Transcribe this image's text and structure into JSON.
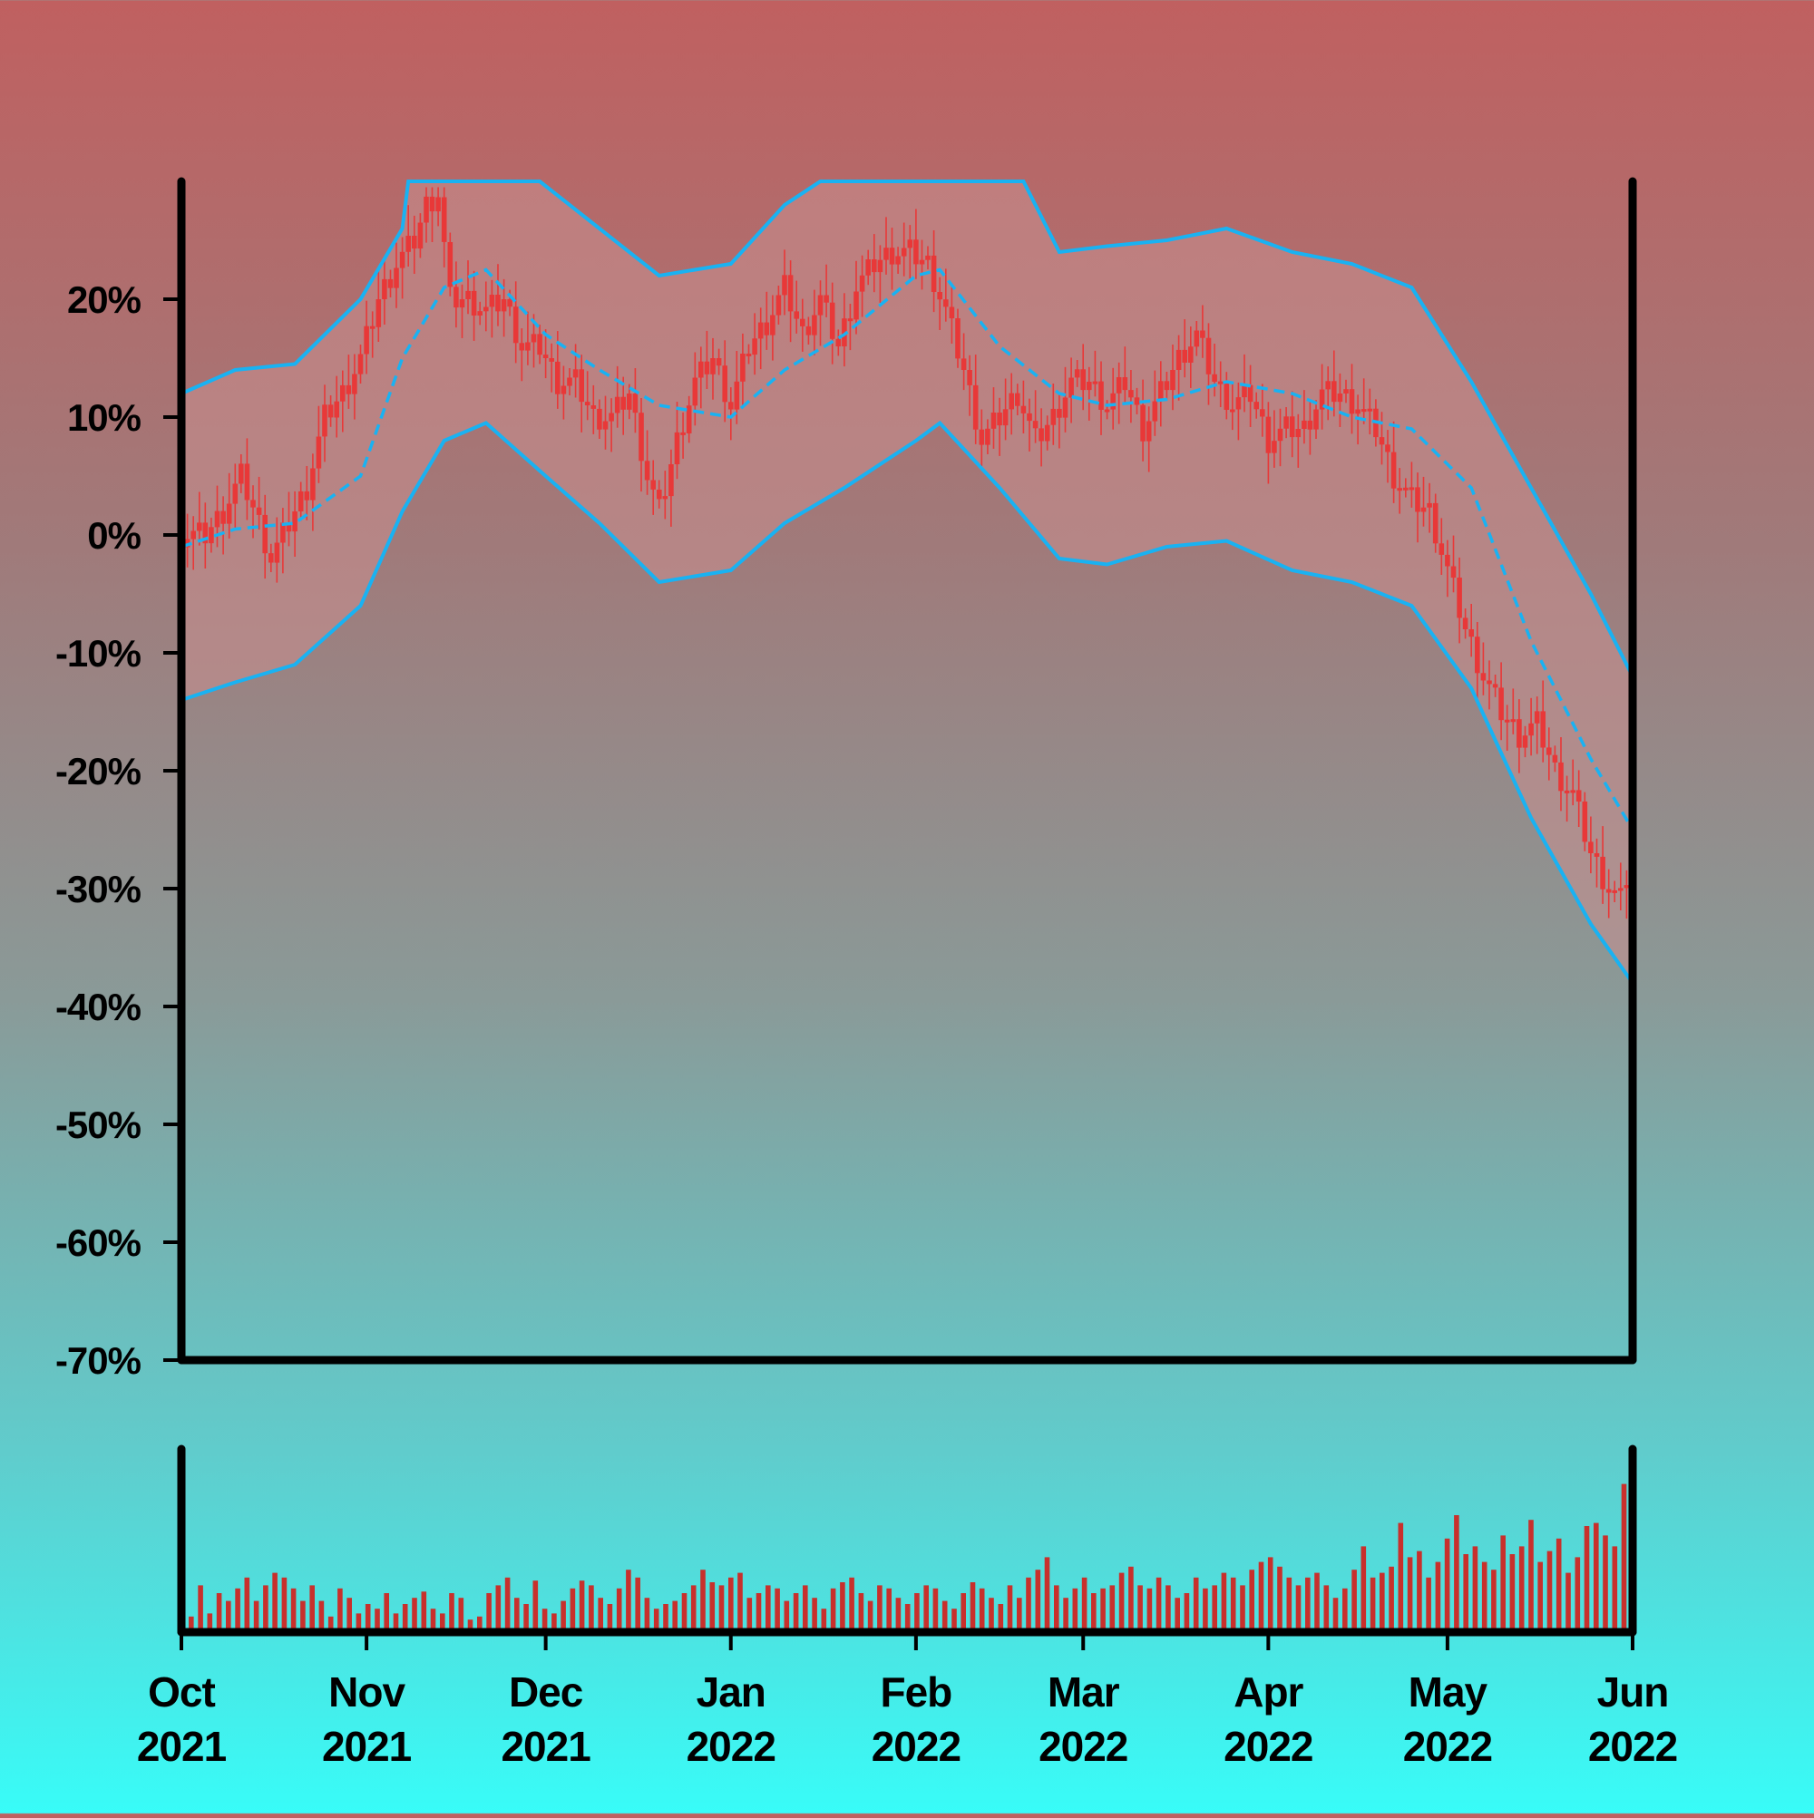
{
  "chart_data": [
    {
      "type": "candlestick",
      "panel": "price",
      "y_unit": "percent",
      "ylim": [
        -70,
        30
      ],
      "yticks": [
        "20%",
        "10%",
        "0%",
        "-10%",
        "-20%",
        "-30%",
        "-40%",
        "-50%",
        "-60%",
        "-70%"
      ],
      "ytick_values": [
        20,
        10,
        0,
        -10,
        -20,
        -30,
        -40,
        -50,
        -60,
        -70
      ],
      "xlim": [
        "2021-10-01",
        "2022-06-01"
      ],
      "grid": false,
      "legend": "none",
      "colors": {
        "candles": "#e83838",
        "bands": "#19b2f2",
        "band_fill": "#c89090"
      },
      "series": [
        {
          "role": "close",
          "style": "red candlesticks",
          "points": [
            [
              "2021-10-01",
              0
            ],
            [
              "2021-10-05",
              0
            ],
            [
              "2021-10-08",
              2
            ],
            [
              "2021-10-11",
              5
            ],
            [
              "2021-10-14",
              1
            ],
            [
              "2021-10-16",
              -2
            ],
            [
              "2021-10-19",
              1
            ],
            [
              "2021-10-22",
              4
            ],
            [
              "2021-10-25",
              10
            ],
            [
              "2021-10-28",
              12
            ],
            [
              "2021-10-31",
              15
            ],
            [
              "2021-11-03",
              20
            ],
            [
              "2021-11-06",
              23
            ],
            [
              "2021-11-09",
              25
            ],
            [
              "2021-11-11",
              28
            ],
            [
              "2021-11-13",
              29
            ],
            [
              "2021-11-15",
              20
            ],
            [
              "2021-11-18",
              20
            ],
            [
              "2021-11-21",
              19
            ],
            [
              "2021-11-24",
              20
            ],
            [
              "2021-11-27",
              16
            ],
            [
              "2021-11-30",
              16
            ],
            [
              "2021-12-03",
              13
            ],
            [
              "2021-12-06",
              13
            ],
            [
              "2021-12-09",
              10
            ],
            [
              "2021-12-12",
              10
            ],
            [
              "2021-12-15",
              12
            ],
            [
              "2021-12-18",
              5
            ],
            [
              "2021-12-20",
              2
            ],
            [
              "2021-12-23",
              8
            ],
            [
              "2021-12-26",
              13
            ],
            [
              "2021-12-29",
              15
            ],
            [
              "2022-01-01",
              11
            ],
            [
              "2022-01-04",
              16
            ],
            [
              "2022-01-07",
              18
            ],
            [
              "2022-01-10",
              21
            ],
            [
              "2022-01-13",
              17
            ],
            [
              "2022-01-16",
              20
            ],
            [
              "2022-01-19",
              16
            ],
            [
              "2022-01-22",
              21
            ],
            [
              "2022-01-25",
              23
            ],
            [
              "2022-01-28",
              24
            ],
            [
              "2022-01-31",
              24
            ],
            [
              "2022-02-03",
              23
            ],
            [
              "2022-02-06",
              19
            ],
            [
              "2022-02-09",
              14
            ],
            [
              "2022-02-12",
              8
            ],
            [
              "2022-02-15",
              10
            ],
            [
              "2022-02-18",
              12
            ],
            [
              "2022-02-21",
              8
            ],
            [
              "2022-02-24",
              10
            ],
            [
              "2022-02-27",
              13
            ],
            [
              "2022-03-02",
              13
            ],
            [
              "2022-03-05",
              11
            ],
            [
              "2022-03-08",
              13
            ],
            [
              "2022-03-11",
              9
            ],
            [
              "2022-03-14",
              12
            ],
            [
              "2022-03-17",
              15
            ],
            [
              "2022-03-20",
              17
            ],
            [
              "2022-03-23",
              13
            ],
            [
              "2022-03-26",
              11
            ],
            [
              "2022-03-29",
              12
            ],
            [
              "2022-04-01",
              8
            ],
            [
              "2022-04-04",
              9
            ],
            [
              "2022-04-07",
              9
            ],
            [
              "2022-04-10",
              12
            ],
            [
              "2022-04-13",
              12
            ],
            [
              "2022-04-16",
              11
            ],
            [
              "2022-04-19",
              9
            ],
            [
              "2022-04-22",
              5
            ],
            [
              "2022-04-25",
              3
            ],
            [
              "2022-04-28",
              2
            ],
            [
              "2022-05-01",
              -3
            ],
            [
              "2022-05-04",
              -8
            ],
            [
              "2022-05-07",
              -12
            ],
            [
              "2022-05-10",
              -15
            ],
            [
              "2022-05-13",
              -17
            ],
            [
              "2022-05-16",
              -16
            ],
            [
              "2022-05-19",
              -20
            ],
            [
              "2022-05-22",
              -22
            ],
            [
              "2022-05-25",
              -27
            ],
            [
              "2022-05-28",
              -30
            ],
            [
              "2022-05-30",
              -31
            ],
            [
              "2022-06-01",
              -27
            ]
          ]
        },
        {
          "role": "moving_average",
          "style": "dashed",
          "points": [
            [
              "2021-10-01",
              -1
            ],
            [
              "2021-10-10",
              0.5
            ],
            [
              "2021-10-20",
              1
            ],
            [
              "2021-10-31",
              5
            ],
            [
              "2021-11-07",
              15
            ],
            [
              "2021-11-14",
              21
            ],
            [
              "2021-11-21",
              22.5
            ],
            [
              "2021-12-01",
              17
            ],
            [
              "2021-12-10",
              14
            ],
            [
              "2021-12-20",
              11
            ],
            [
              "2022-01-01",
              10
            ],
            [
              "2022-01-10",
              14
            ],
            [
              "2022-01-20",
              17
            ],
            [
              "2022-02-01",
              22
            ],
            [
              "2022-02-05",
              22.5
            ],
            [
              "2022-02-15",
              16
            ],
            [
              "2022-02-25",
              12
            ],
            [
              "2022-03-05",
              11
            ],
            [
              "2022-03-15",
              11.5
            ],
            [
              "2022-03-25",
              13
            ],
            [
              "2022-04-05",
              12
            ],
            [
              "2022-04-15",
              10
            ],
            [
              "2022-04-25",
              9
            ],
            [
              "2022-05-05",
              4
            ],
            [
              "2022-05-15",
              -9
            ],
            [
              "2022-05-25",
              -19
            ],
            [
              "2022-06-01",
              -25
            ]
          ]
        },
        {
          "role": "upper_band",
          "style": "solid",
          "points": [
            [
              "2021-10-01",
              12
            ],
            [
              "2021-10-10",
              14
            ],
            [
              "2021-10-20",
              14.5
            ],
            [
              "2021-10-31",
              20
            ],
            [
              "2021-11-07",
              26
            ],
            [
              "2021-11-08",
              30
            ],
            [
              "2021-11-30",
              30
            ],
            [
              "2021-12-10",
              26
            ],
            [
              "2021-12-20",
              22
            ],
            [
              "2022-01-01",
              23
            ],
            [
              "2022-01-10",
              28
            ],
            [
              "2022-01-16",
              30
            ],
            [
              "2022-02-19",
              30
            ],
            [
              "2022-02-25",
              24
            ],
            [
              "2022-03-05",
              24.5
            ],
            [
              "2022-03-15",
              25
            ],
            [
              "2022-03-25",
              26
            ],
            [
              "2022-04-05",
              24
            ],
            [
              "2022-04-15",
              23
            ],
            [
              "2022-04-25",
              21
            ],
            [
              "2022-05-05",
              13
            ],
            [
              "2022-05-15",
              4
            ],
            [
              "2022-05-25",
              -5
            ],
            [
              "2022-06-01",
              -12
            ]
          ]
        },
        {
          "role": "lower_band",
          "style": "solid",
          "points": [
            [
              "2021-10-01",
              -14
            ],
            [
              "2021-10-10",
              -12.5
            ],
            [
              "2021-10-20",
              -11
            ],
            [
              "2021-10-31",
              -6
            ],
            [
              "2021-11-07",
              2
            ],
            [
              "2021-11-14",
              8
            ],
            [
              "2021-11-21",
              9.5
            ],
            [
              "2021-12-01",
              5
            ],
            [
              "2021-12-10",
              1
            ],
            [
              "2021-12-20",
              -4
            ],
            [
              "2022-01-01",
              -3
            ],
            [
              "2022-01-10",
              1
            ],
            [
              "2022-01-20",
              4
            ],
            [
              "2022-02-01",
              8
            ],
            [
              "2022-02-05",
              9.5
            ],
            [
              "2022-02-15",
              4
            ],
            [
              "2022-02-25",
              -2
            ],
            [
              "2022-03-05",
              -2.5
            ],
            [
              "2022-03-15",
              -1
            ],
            [
              "2022-03-25",
              -0.5
            ],
            [
              "2022-04-05",
              -3
            ],
            [
              "2022-04-15",
              -4
            ],
            [
              "2022-04-25",
              -6
            ],
            [
              "2022-05-05",
              -13
            ],
            [
              "2022-05-15",
              -24
            ],
            [
              "2022-05-25",
              -33
            ],
            [
              "2022-06-01",
              -38
            ]
          ]
        }
      ]
    },
    {
      "type": "bar",
      "panel": "volume",
      "relative_heights": [
        0.1,
        0.3,
        0.12,
        0.25,
        0.2,
        0.28,
        0.35,
        0.2,
        0.3,
        0.38,
        0.35,
        0.28,
        0.2,
        0.3,
        0.2,
        0.1,
        0.28,
        0.22,
        0.12,
        0.18,
        0.15,
        0.25,
        0.12,
        0.18,
        0.22,
        0.26,
        0.15,
        0.12,
        0.25,
        0.22,
        0.08,
        0.1,
        0.25,
        0.3,
        0.35,
        0.22,
        0.18,
        0.33,
        0.15,
        0.12,
        0.2,
        0.28,
        0.33,
        0.3,
        0.22,
        0.18,
        0.28,
        0.4,
        0.35,
        0.22,
        0.15,
        0.18,
        0.2,
        0.25,
        0.3,
        0.4,
        0.32,
        0.3,
        0.35,
        0.38,
        0.22,
        0.25,
        0.3,
        0.28,
        0.2,
        0.25,
        0.3,
        0.22,
        0.15,
        0.28,
        0.32,
        0.35,
        0.25,
        0.2,
        0.3,
        0.28,
        0.22,
        0.18,
        0.25,
        0.3,
        0.28,
        0.2,
        0.15,
        0.25,
        0.32,
        0.28,
        0.22,
        0.18,
        0.3,
        0.22,
        0.35,
        0.4,
        0.48,
        0.3,
        0.22,
        0.28,
        0.35,
        0.25,
        0.28,
        0.3,
        0.38,
        0.42,
        0.3,
        0.28,
        0.35,
        0.3,
        0.22,
        0.25,
        0.35,
        0.28,
        0.3,
        0.38,
        0.35,
        0.3,
        0.4,
        0.45,
        0.48,
        0.42,
        0.35,
        0.3,
        0.35,
        0.38,
        0.3,
        0.22,
        0.28,
        0.4,
        0.55,
        0.35,
        0.38,
        0.42,
        0.7,
        0.48,
        0.52,
        0.35,
        0.45,
        0.6,
        0.75,
        0.5,
        0.55,
        0.45,
        0.4,
        0.62,
        0.5,
        0.55,
        0.72,
        0.45,
        0.52,
        0.6,
        0.38,
        0.48,
        0.68,
        0.7,
        0.62,
        0.55,
        0.95
      ]
    }
  ],
  "x_axis": {
    "ticks": [
      {
        "month": "Oct",
        "year": "2021",
        "date": "2021-10-01"
      },
      {
        "month": "Nov",
        "year": "2021",
        "date": "2021-11-01"
      },
      {
        "month": "Dec",
        "year": "2021",
        "date": "2021-12-01"
      },
      {
        "month": "Jan",
        "year": "2022",
        "date": "2022-01-01"
      },
      {
        "month": "Feb",
        "year": "2022",
        "date": "2022-02-01"
      },
      {
        "month": "Mar",
        "year": "2022",
        "date": "2022-03-01"
      },
      {
        "month": "Apr",
        "year": "2022",
        "date": "2022-04-01"
      },
      {
        "month": "May",
        "year": "2022",
        "date": "2022-05-01"
      },
      {
        "month": "Jun",
        "year": "2022",
        "date": "2022-06-01"
      }
    ]
  }
}
